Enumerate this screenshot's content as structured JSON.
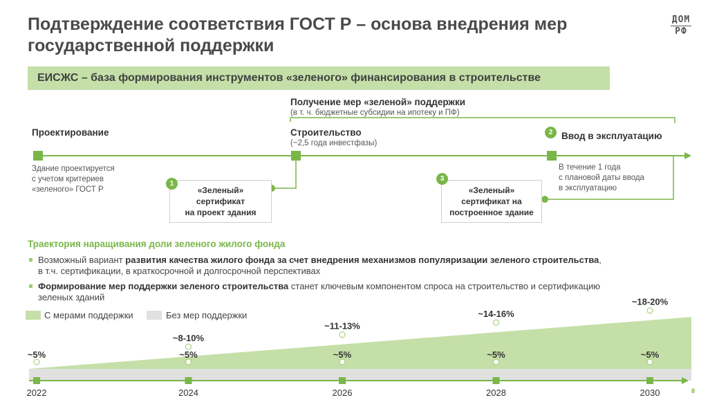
{
  "title_line1": "Подтверждение соответствия ГОСТ Р – основа внедрения мер",
  "title_line2": "государственной поддержки",
  "logo": {
    "top": "ДОМ",
    "bottom": "РФ"
  },
  "banner": "ЕИСЖС – база формирования инструментов «зеленого» финансирования в строительстве",
  "support": {
    "title": "Получение мер «зеленой» поддержки",
    "note": "(в т. ч. бюджетные субсидии на ипотеку и ПФ)"
  },
  "stages": [
    {
      "title": "Проектирование",
      "desc": [
        "Здание проектируется",
        "с учетом критериев",
        "«зеленого» ГОСТ Р"
      ]
    },
    {
      "title": "Строительство",
      "desc": [
        "(~2,5 года инвестфазы)"
      ]
    },
    {
      "badge": "2",
      "title": "Ввод в эксплуатацию",
      "desc": [
        "В течение 1 года",
        "с плановой даты ввода",
        "в эксплуатацию"
      ]
    }
  ],
  "certs": [
    {
      "badge": "1",
      "lines": [
        "«Зеленый»",
        "сертификат",
        "на проект здания"
      ]
    },
    {
      "badge": "3",
      "lines": [
        "«Зеленый»",
        "сертификат на",
        "построенное здание"
      ]
    }
  ],
  "trajectory": {
    "title": "Траектория наращивания доли зеленого жилого фонда",
    "bullet1": {
      "plain1": "Возможный вариант ",
      "bold": "развития качества жилого фонда за счет внедрения механизмов популяризации зеленого строительства",
      "plain2": ",",
      "line2": "в т.ч. сертификации, в краткосрочной и долгосрочной перспективах"
    },
    "bullet2": {
      "bold": "Формирование мер поддержки зеленого строительства",
      "plain": " станет ключевым компонентом спроса на строительство и сертификацию",
      "line2": "зеленых зданий"
    }
  },
  "chart_data": {
    "type": "area",
    "x": [
      2022,
      2024,
      2026,
      2028,
      2030
    ],
    "legend": "top-left",
    "series": [
      {
        "name": "С мерами поддержки",
        "labels": [
          "~5%",
          "~8-10%",
          "~11-13%",
          "~14-16%",
          "~18-20%"
        ],
        "color": "#c5dfa8"
      },
      {
        "name": "Без мер поддержки",
        "labels": [
          "~5%",
          "~5%",
          "~5%",
          "~5%",
          "~5%"
        ],
        "color": "#e0e0e0"
      }
    ]
  },
  "page_number": "8",
  "colors": {
    "accent": "#7ab648",
    "light_green": "#c5dfa8",
    "gray": "#e0e0e0",
    "text": "#333333"
  }
}
